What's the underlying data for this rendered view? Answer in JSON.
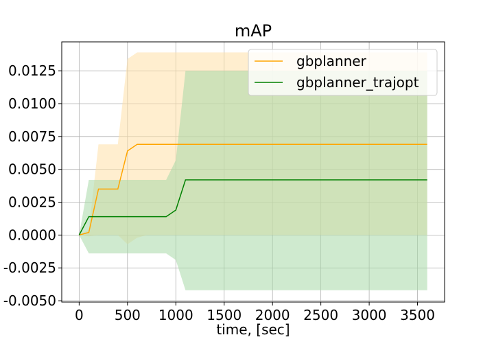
{
  "chart_data": {
    "type": "line",
    "title": "mAP",
    "xlabel": "time, [sec]",
    "ylabel": "",
    "xlim": [
      -180,
      3780
    ],
    "ylim": [
      -0.0051,
      0.0147
    ],
    "xticks": [
      0,
      500,
      1000,
      1500,
      2000,
      2500,
      3000,
      3500
    ],
    "xtick_labels": [
      "0",
      "500",
      "1000",
      "1500",
      "2000",
      "2500",
      "3000",
      "3500"
    ],
    "yticks": [
      -0.005,
      -0.0025,
      0.0,
      0.0025,
      0.005,
      0.0075,
      0.01,
      0.0125
    ],
    "ytick_labels": [
      "-0.0050",
      "-0.0025",
      "0.0000",
      "0.0025",
      "0.0050",
      "0.0075",
      "0.0100",
      "0.0125"
    ],
    "grid": true,
    "legend_position": "top-right",
    "series": [
      {
        "name": "gbplanner",
        "color": "#ffa500",
        "band_color": "#ffe0a8",
        "x": [
          0,
          100,
          200,
          300,
          400,
          500,
          600,
          700,
          3600
        ],
        "y": [
          0,
          0.0002,
          0.0035,
          0.0035,
          0.0035,
          0.0064,
          0.0069,
          0.0069,
          0.0069
        ],
        "lower": [
          0,
          -0.0001,
          0.0,
          0.0,
          0.0,
          -0.0007,
          -0.0002,
          0.0,
          0.0
        ],
        "upper": [
          0,
          0.0004,
          0.0069,
          0.0069,
          0.0069,
          0.0134,
          0.0139,
          0.0139,
          0.0139
        ]
      },
      {
        "name": "gbplanner_trajopt",
        "color": "#008000",
        "band_color": "#a8d8a8",
        "x": [
          0,
          100,
          200,
          300,
          400,
          500,
          600,
          700,
          800,
          900,
          1000,
          1100,
          3600
        ],
        "y": [
          0,
          0.0014,
          0.0014,
          0.0014,
          0.0014,
          0.0014,
          0.0014,
          0.0014,
          0.0014,
          0.0014,
          0.0019,
          0.0042,
          0.0042
        ],
        "lower": [
          0,
          -0.0014,
          -0.0014,
          -0.0014,
          -0.0014,
          -0.0014,
          -0.0014,
          -0.0014,
          -0.0014,
          -0.0014,
          -0.0019,
          -0.0042,
          -0.0042
        ],
        "upper": [
          0,
          0.0042,
          0.0042,
          0.0042,
          0.0042,
          0.0042,
          0.0042,
          0.0042,
          0.0042,
          0.0042,
          0.0057,
          0.0125,
          0.0125
        ]
      }
    ]
  }
}
